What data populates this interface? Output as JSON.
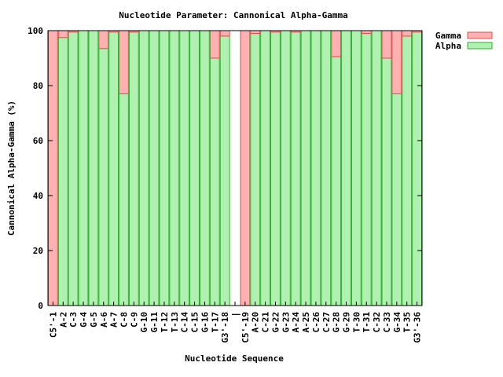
{
  "chart_data": {
    "type": "bar",
    "stacked": true,
    "title": "Nucleotide Parameter: Cannonical Alpha-Gamma",
    "xlabel": "Nucleotide Sequence",
    "ylabel": "Cannonical Alpha-Gamma (%)",
    "ylim": [
      0,
      100
    ],
    "yticks": [
      "0",
      "20",
      "40",
      "60",
      "80",
      "100"
    ],
    "legend_position": "top-right, outside plot",
    "categories": [
      "C5'-1",
      "A-2",
      "C-3",
      "G-4",
      "G-5",
      "A-6",
      "A-7",
      "C-8",
      "C-9",
      "G-10",
      "G-11",
      "T-12",
      "T-13",
      "C-14",
      "C-15",
      "G-16",
      "T-17",
      "G3'-18",
      "|",
      "C5'-19",
      "A-20",
      "C-21",
      "G-22",
      "G-23",
      "A-24",
      "A-25",
      "C-26",
      "C-27",
      "G-28",
      "G-29",
      "T-30",
      "T-31",
      "C-32",
      "C-33",
      "G-34",
      "T-35",
      "G3'-36"
    ],
    "series": [
      {
        "name": "Gamma",
        "color": "#ffb0b0",
        "stroke": "#e05050",
        "values": [
          100,
          2.5,
          0.5,
          0,
          0,
          6.5,
          0.5,
          23,
          0.5,
          0,
          0,
          0,
          0,
          0,
          0,
          0,
          10,
          2,
          0,
          100,
          1,
          0,
          0.5,
          0,
          0.5,
          0,
          0,
          0,
          9.5,
          0,
          0,
          1,
          0,
          10,
          23,
          2,
          0.5
        ]
      },
      {
        "name": "Alpha",
        "color": "#b0f0b0",
        "stroke": "#30b030",
        "values": [
          0,
          97.5,
          99.5,
          100,
          100,
          93.5,
          99.5,
          77,
          99.5,
          100,
          100,
          100,
          100,
          100,
          100,
          100,
          90,
          98,
          0,
          0,
          99,
          100,
          99.5,
          100,
          99.5,
          100,
          100,
          100,
          90.5,
          100,
          100,
          99,
          100,
          90,
          77,
          98,
          99.5
        ]
      }
    ]
  }
}
